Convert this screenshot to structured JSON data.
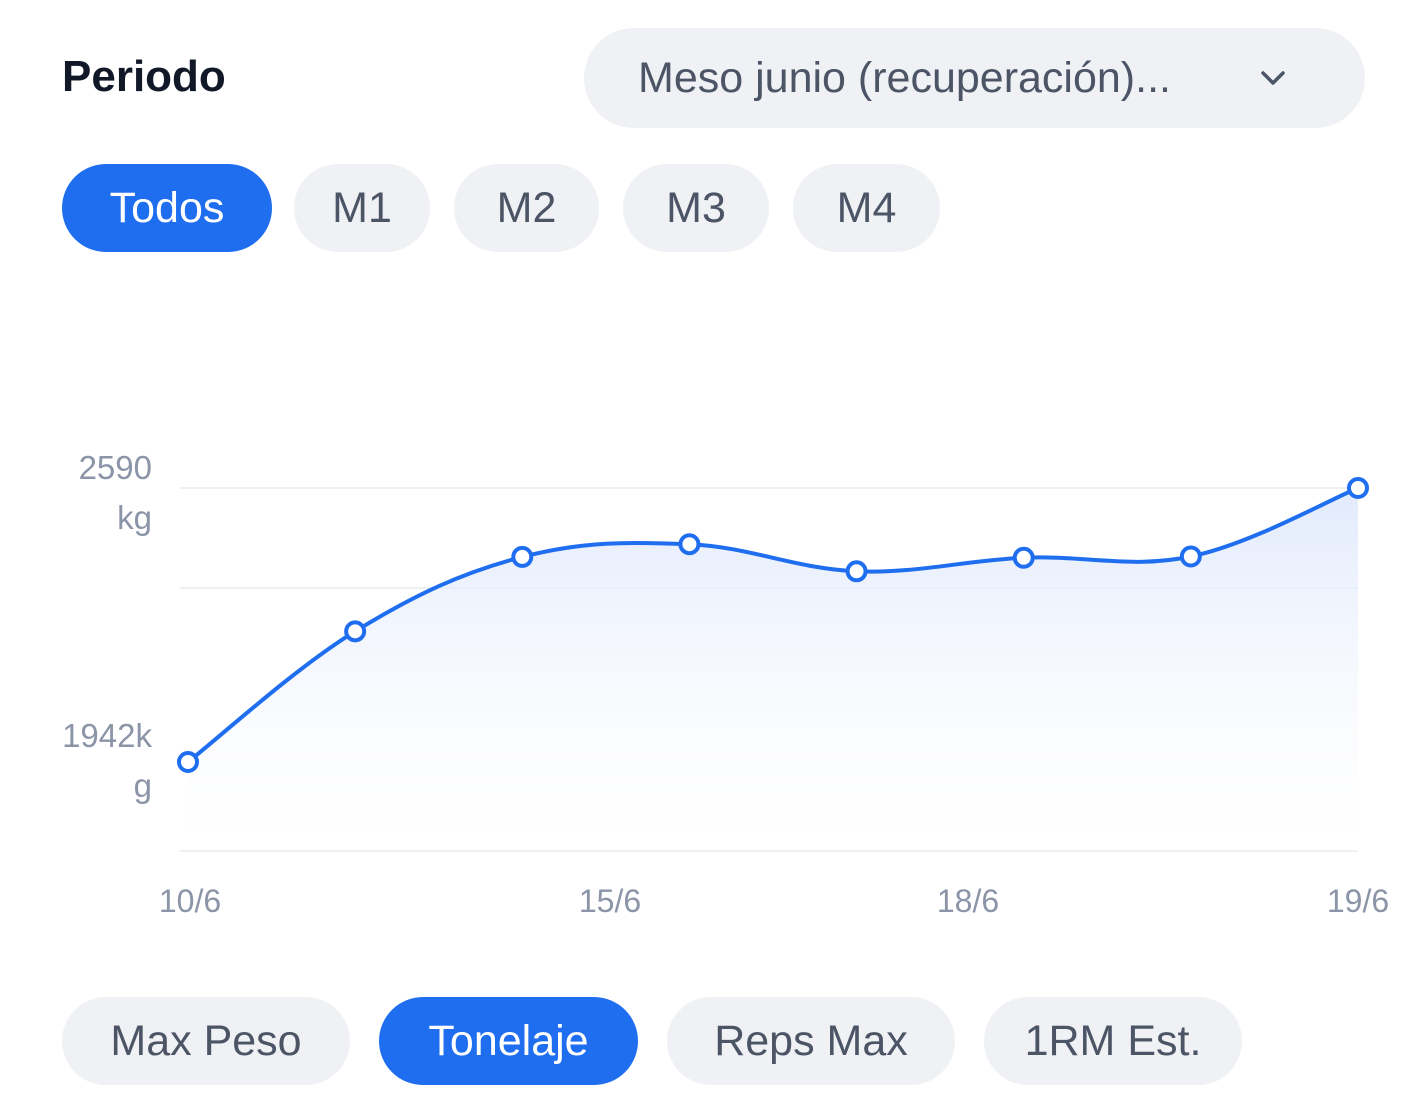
{
  "header": {
    "period_label": "Periodo",
    "period_select_value": "Meso junio (recuperación)..."
  },
  "week_filters": {
    "items": [
      "Todos",
      "M1",
      "M2",
      "M3",
      "M4"
    ],
    "active": "Todos"
  },
  "metric_tabs": {
    "items": [
      "Max Peso",
      "Tonelaje",
      "Reps Max",
      "1RM Est."
    ],
    "active": "Tonelaje"
  },
  "colors": {
    "accent": "#1f6ef0",
    "pill_bg": "#f0f1f4",
    "axis_text": "#8b95a7"
  },
  "chart_data": {
    "type": "line",
    "series": [
      {
        "x": [
          "10/6",
          "",
          "",
          "15/6",
          "",
          "18/6",
          "",
          "19/6"
        ],
        "values": [
          1942,
          2251,
          2427,
          2457,
          2393,
          2425,
          2428,
          2590
        ]
      }
    ],
    "ytick_labels": [
      "2590 kg",
      "1942kg"
    ],
    "xtick_labels": [
      "10/6",
      "15/6",
      "18/6",
      "19/6"
    ],
    "ylim": [
      1942,
      2590
    ],
    "grid": true,
    "area_fill": true
  }
}
